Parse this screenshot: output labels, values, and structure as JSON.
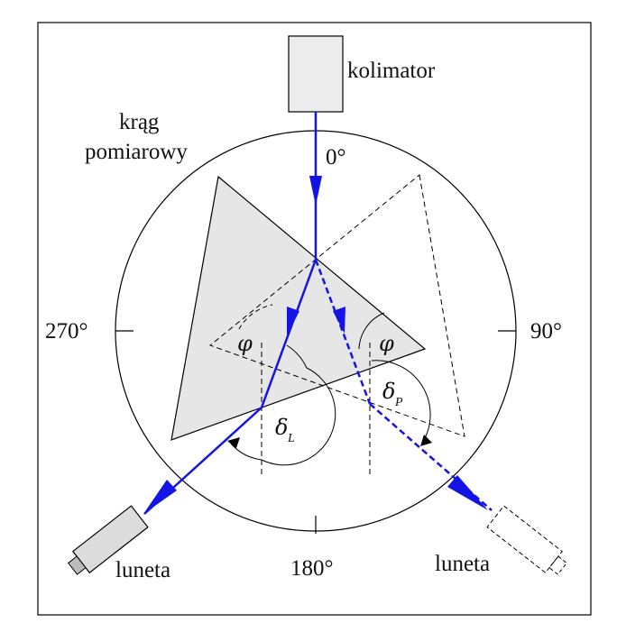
{
  "labels": {
    "kolimator": "kolimator",
    "krag_line1": "krąg",
    "krag_line2": "pomiarowy",
    "deg0": "0°",
    "deg90": "90°",
    "deg180": "180°",
    "deg270": "270°",
    "luneta_left": "luneta",
    "luneta_right": "luneta",
    "phi_left": "φ",
    "phi_right": "φ",
    "delta_left": "δ",
    "delta_left_sub": "L",
    "delta_right": "δ",
    "delta_right_sub": "P"
  },
  "colors": {
    "ray": "#1414e6",
    "prism_fill": "#e6e6e6",
    "stroke": "#000000",
    "telescope_fill": "#dcdcdc"
  }
}
